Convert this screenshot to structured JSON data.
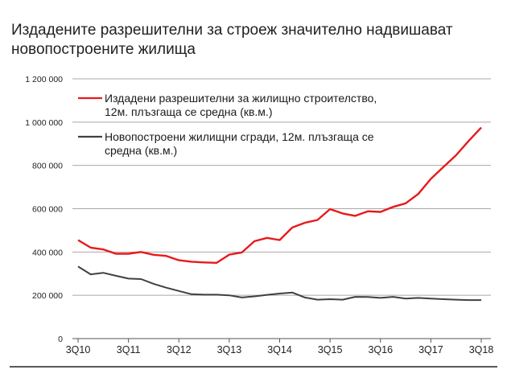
{
  "chart_data": {
    "type": "line",
    "title": "Издадените разрешителни за строеж значително надвишават новопостроените жилища",
    "title_lines": [
      "Издадените разрешителни за строеж значително надвишават",
      "новопостроените жилища"
    ],
    "xlabel": "",
    "ylabel": "",
    "ylim": [
      0,
      1200000
    ],
    "yticks": [
      0,
      200000,
      400000,
      600000,
      800000,
      1000000,
      1200000
    ],
    "ytick_labels": [
      "0",
      "200 000",
      "400 000",
      "600 000",
      "800 000",
      "1 000 000",
      "1 200 000"
    ],
    "x_tick_labels": [
      "3Q10",
      "3Q11",
      "3Q12",
      "3Q13",
      "3Q14",
      "3Q15",
      "3Q16",
      "3Q17",
      "3Q18"
    ],
    "grid": "horizontal",
    "legend_position": "top-left",
    "series": [
      {
        "name": "Издадени разрешителни за жилищно строителство, 12м. плъзгаща се средна (кв.м.)",
        "legend_lines": [
          "Издадени разрешителни за жилищно строителство,",
          "12м. плъзгаща се средна (кв.м.)"
        ],
        "color": "#e8191c",
        "values": [
          455000,
          420000,
          412000,
          392000,
          392000,
          400000,
          387000,
          382000,
          362000,
          355000,
          352000,
          350000,
          388000,
          398000,
          450000,
          465000,
          455000,
          513000,
          535000,
          548000,
          598000,
          578000,
          567000,
          588000,
          585000,
          608000,
          625000,
          668000,
          738000,
          793000,
          847000,
          913000,
          975000
        ]
      },
      {
        "name": "Новопостроени жилищни сгради, 12м. плъзгаща се средна (кв.м.)",
        "legend_lines": [
          "Новопостроени жилищни сгради, 12м. плъзгаща се",
          "средна (кв.м.)"
        ],
        "color": "#404040",
        "values": [
          333000,
          297000,
          304000,
          290000,
          277000,
          275000,
          253000,
          235000,
          220000,
          205000,
          203000,
          203000,
          200000,
          190000,
          195000,
          202000,
          208000,
          213000,
          190000,
          180000,
          182000,
          180000,
          193000,
          192000,
          188000,
          193000,
          185000,
          188000,
          185000,
          182000,
          180000,
          178000,
          178000
        ]
      }
    ]
  }
}
